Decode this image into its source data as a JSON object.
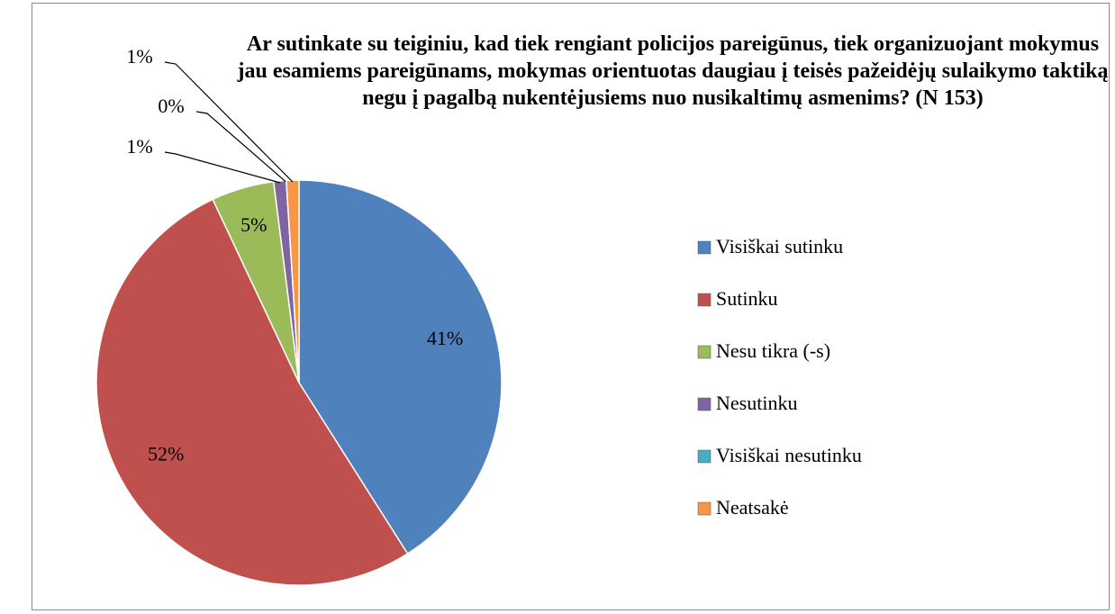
{
  "chart_data": {
    "type": "pie",
    "title": "Ar sutinkate su teiginiu, kad tiek rengiant policijos pareigūnus, tiek organizuojant mokymus jau esamiems pareigūnams, mokymas orientuotas daugiau į teisės pažeidėjų sulaikymo taktiką negu į pagalbą nukentėjusiems nuo nusikaltimų asmenims? (N 153)",
    "categories": [
      "Visiškai sutinku",
      "Sutinku",
      "Nesu tikra (-s)",
      "Nesutinku",
      "Visiškai nesutinku",
      "Neatsakė"
    ],
    "values": [
      41,
      52,
      5,
      1,
      0,
      1
    ],
    "value_labels": [
      "41%",
      "52%",
      "5%",
      "1%",
      "0%",
      "1%"
    ],
    "colors": [
      "#4f81bd",
      "#c0504d",
      "#9bbb59",
      "#8064a2",
      "#4bacc6",
      "#f79646"
    ],
    "legend": "right"
  }
}
